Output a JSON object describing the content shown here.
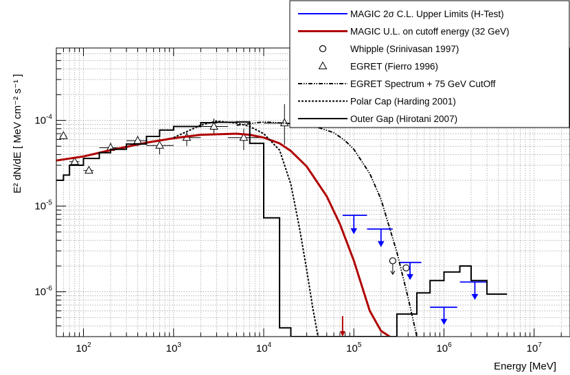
{
  "chart_data": {
    "type": "line",
    "title": "",
    "xlabel": "Energy [MeV]",
    "ylabel": "E² dN/dE [ MeV cm⁻² s⁻¹ ]",
    "xscale": "log",
    "yscale": "log",
    "xlim": [
      50,
      25000000
    ],
    "ylim": [
      3e-07,
      0.0007
    ],
    "grid": true,
    "legend_position": "top-right",
    "x_ticks": [
      {
        "value": 100,
        "base": "10",
        "exp": "2"
      },
      {
        "value": 1000,
        "base": "10",
        "exp": "3"
      },
      {
        "value": 10000,
        "base": "10",
        "exp": "4"
      },
      {
        "value": 100000,
        "base": "10",
        "exp": "5"
      },
      {
        "value": 1000000,
        "base": "10",
        "exp": "6"
      },
      {
        "value": 10000000,
        "base": "10",
        "exp": "7"
      }
    ],
    "y_ticks": [
      {
        "value": 1e-06,
        "base": "10",
        "exp": "-6"
      },
      {
        "value": 1e-05,
        "base": "10",
        "exp": "-5"
      },
      {
        "value": 0.0001,
        "base": "10",
        "exp": "-4"
      }
    ],
    "legend": [
      {
        "label": "MAGIC  2σ C.L. Upper Limits (H-Test)",
        "style": "line",
        "color": "#0000ff",
        "dash": ""
      },
      {
        "label": "MAGIC U.L. on cutoff energy (32 GeV)",
        "style": "line",
        "color": "#b00000",
        "dash": ""
      },
      {
        "label": "Whipple (Srinivasan 1997)",
        "style": "circle",
        "color": "#000000",
        "dash": ""
      },
      {
        "label": "EGRET (Fierro 1996)",
        "style": "triangle",
        "color": "#000000",
        "dash": ""
      },
      {
        "label": "EGRET Spectrum + 75 GeV CutOff",
        "style": "line",
        "color": "#000000",
        "dash": "6,2,1.5,2,1.5,2"
      },
      {
        "label": "Polar Cap (Harding 2001)",
        "style": "line",
        "color": "#000000",
        "dash": "3,2"
      },
      {
        "label": "Outer Gap (Hirotani 2007)",
        "style": "line",
        "color": "#000000",
        "dash": ""
      }
    ],
    "series": [
      {
        "name": "EGRET (Fierro 1996)",
        "kind": "triangles",
        "points": [
          {
            "x": 60,
            "y": 6.6e-05,
            "xlo": 55,
            "xhi": 65,
            "ylo": 6e-05,
            "yhi": 7.2e-05
          },
          {
            "x": 80,
            "y": 3.3e-05,
            "xlo": 70,
            "xhi": 90,
            "ylo": 3e-05,
            "yhi": 3.6e-05
          },
          {
            "x": 115,
            "y": 2.6e-05,
            "xlo": 100,
            "xhi": 130,
            "ylo": 2.4e-05,
            "yhi": 2.8e-05
          },
          {
            "x": 200,
            "y": 4.8e-05,
            "xlo": 150,
            "xhi": 300,
            "ylo": 4.2e-05,
            "yhi": 5.5e-05
          },
          {
            "x": 400,
            "y": 5.8e-05,
            "xlo": 300,
            "xhi": 500,
            "ylo": 5e-05,
            "yhi": 6.6e-05
          },
          {
            "x": 700,
            "y": 5.1e-05,
            "xlo": 500,
            "xhi": 1000,
            "ylo": 4e-05,
            "yhi": 6.2e-05
          },
          {
            "x": 1400,
            "y": 6.3e-05,
            "xlo": 1000,
            "xhi": 2000,
            "ylo": 5e-05,
            "yhi": 7.5e-05
          },
          {
            "x": 2800,
            "y": 8.5e-05,
            "xlo": 2000,
            "xhi": 4000,
            "ylo": 7e-05,
            "yhi": 0.000105
          },
          {
            "x": 6000,
            "y": 6.3e-05,
            "xlo": 4000,
            "xhi": 10000,
            "ylo": 4.5e-05,
            "yhi": 8e-05
          },
          {
            "x": 17000,
            "y": 9.3e-05,
            "xlo": 10000,
            "xhi": 30000,
            "ylo": 5.2e-05,
            "yhi": 0.000155
          }
        ]
      },
      {
        "name": "Whipple (Srinivasan 1997)",
        "kind": "circles",
        "points": [
          {
            "x": 270000,
            "y": 2.3e-06,
            "limit_to": 1.6e-06
          },
          {
            "x": 380000,
            "y": 1.9e-06
          }
        ]
      },
      {
        "name": "MAGIC  2σ C.L. Upper Limits (H-Test)",
        "kind": "upper_limits",
        "points": [
          {
            "x": 100000,
            "xlo": 75000,
            "xhi": 140000,
            "y": 7.8e-06,
            "arrow_to": 4.8e-06
          },
          {
            "x": 200000,
            "xlo": 140000,
            "xhi": 270000,
            "y": 5.4e-06,
            "arrow_to": 3.4e-06
          },
          {
            "x": 420000,
            "xlo": 320000,
            "xhi": 560000,
            "y": 2.2e-06,
            "arrow_to": 1.4e-06
          },
          {
            "x": 2200000,
            "xlo": 1500000,
            "xhi": 3000000,
            "y": 1.3e-06,
            "arrow_to": 8.2e-07
          },
          {
            "x": 1000000,
            "xlo": 700000,
            "xhi": 1400000,
            "y": 6.6e-07,
            "arrow_to": 4.2e-07
          }
        ]
      },
      {
        "name": "MAGIC U.L. on cutoff energy (32 GeV)",
        "kind": "line",
        "x": [
          50,
          100,
          200,
          500,
          1000,
          2000,
          5000,
          7000,
          10000,
          15000,
          20000,
          30000,
          50000,
          70000,
          100000,
          150000,
          200000,
          250000
        ],
        "y": [
          3.4e-05,
          3.8e-05,
          4.5e-05,
          5.5e-05,
          6.2e-05,
          6.8e-05,
          7e-05,
          6.8e-05,
          6.3e-05,
          5.4e-05,
          4.4e-05,
          2.9e-05,
          1.3e-05,
          6.2e-06,
          2.3e-06,
          6e-07,
          3.5e-07,
          3e-07
        ]
      },
      {
        "name": "EGRET Spectrum + 75 GeV CutOff",
        "kind": "line",
        "x": [
          5000,
          10000,
          20000,
          40000,
          60000,
          80000,
          100000,
          150000,
          200000,
          300000,
          400000,
          500000
        ],
        "y": [
          8.8e-05,
          9.6e-05,
          9.2e-05,
          8.3e-05,
          7.2e-05,
          5.8e-05,
          4.6e-05,
          2.4e-05,
          1.2e-05,
          2.9e-06,
          8.5e-07,
          3e-07
        ]
      },
      {
        "name": "Polar Cap (Harding 2001)",
        "kind": "line",
        "x": [
          1000,
          2000,
          3000,
          5000,
          7000,
          10000,
          15000,
          20000,
          25000,
          30000,
          35000,
          40000
        ],
        "y": [
          6.3e-05,
          8.8e-05,
          9.8e-05,
          9.3e-05,
          8.5e-05,
          7e-05,
          4.5e-05,
          1.8e-05,
          5.5e-06,
          1.8e-06,
          6.5e-07,
          3e-07
        ]
      },
      {
        "name": "Outer Gap (Hirotani 2007)",
        "kind": "step",
        "edges": [
          50,
          60,
          70,
          100,
          150,
          200,
          300,
          500,
          700,
          1000,
          2000,
          3000,
          5000,
          7000,
          10000,
          15000,
          20000,
          30000,
          50000,
          70000,
          100000,
          150000,
          200000,
          300000,
          500000,
          700000,
          1000000,
          1500000,
          2000000,
          3000000,
          5000000
        ],
        "y": [
          2e-05,
          2.3e-05,
          3e-05,
          3.6e-05,
          4.2e-05,
          4.6e-05,
          5.3e-05,
          6.5e-05,
          7.7e-05,
          8.5e-05,
          9.4e-05,
          9.5e-05,
          9.6e-05,
          5.4e-05,
          7.3e-06,
          3.8e-07,
          3e-07,
          3e-07,
          3e-07,
          3e-07,
          3e-07,
          3e-07,
          3e-07,
          5.5e-07,
          9.7e-07,
          1.35e-06,
          1.7e-06,
          2e-06,
          1.35e-06,
          9.4e-07
        ]
      }
    ],
    "annotations": [
      {
        "name": "red-arrow",
        "x": 75000,
        "y_from": 5.2e-07,
        "y_to": 3e-07,
        "color": "#b00000"
      }
    ]
  }
}
